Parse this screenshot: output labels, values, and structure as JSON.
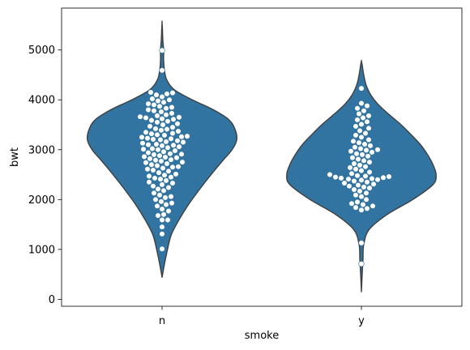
{
  "chart_data": {
    "type": "violin",
    "overlay": "swarm",
    "xlabel": "smoke",
    "ylabel": "bwt",
    "categories": [
      "n",
      "y"
    ],
    "ylim": [
      -140,
      5840
    ],
    "yticks": [
      0,
      1000,
      2000,
      3000,
      4000,
      5000
    ],
    "colors": {
      "violin_fill": "#3274a1",
      "violin_edge": "#3f3f3f",
      "point_fill": "#ffffff",
      "point_edge": "#3274a1",
      "axes": "#000000"
    },
    "violins": [
      {
        "category": "n",
        "range": [
          440,
          5560
        ],
        "density": [
          [
            440,
            0.0
          ],
          [
            700,
            0.03
          ],
          [
            1000,
            0.07
          ],
          [
            1300,
            0.12
          ],
          [
            1600,
            0.22
          ],
          [
            1900,
            0.34
          ],
          [
            2200,
            0.48
          ],
          [
            2500,
            0.63
          ],
          [
            2800,
            0.79
          ],
          [
            3000,
            0.9
          ],
          [
            3200,
            0.96
          ],
          [
            3400,
            0.94
          ],
          [
            3600,
            0.86
          ],
          [
            3800,
            0.66
          ],
          [
            4000,
            0.39
          ],
          [
            4200,
            0.16
          ],
          [
            4400,
            0.06
          ],
          [
            4600,
            0.03
          ],
          [
            4800,
            0.02
          ],
          [
            5000,
            0.02
          ],
          [
            5200,
            0.01
          ],
          [
            5400,
            0.005
          ],
          [
            5560,
            0.0
          ]
        ]
      },
      {
        "category": "y",
        "range": [
          150,
          4780
        ],
        "density": [
          [
            150,
            0.0
          ],
          [
            500,
            0.01
          ],
          [
            800,
            0.02
          ],
          [
            1100,
            0.03
          ],
          [
            1400,
            0.1
          ],
          [
            1700,
            0.33
          ],
          [
            2000,
            0.66
          ],
          [
            2300,
            0.92
          ],
          [
            2500,
            0.96
          ],
          [
            2700,
            0.92
          ],
          [
            2900,
            0.85
          ],
          [
            3100,
            0.76
          ],
          [
            3300,
            0.64
          ],
          [
            3500,
            0.51
          ],
          [
            3700,
            0.36
          ],
          [
            3900,
            0.22
          ],
          [
            4100,
            0.12
          ],
          [
            4300,
            0.06
          ],
          [
            4500,
            0.03
          ],
          [
            4700,
            0.01
          ],
          [
            4780,
            0.0
          ]
        ]
      }
    ],
    "points": {
      "n": [
        1010,
        1310,
        1450,
        1590,
        1590,
        1680,
        1700,
        1770,
        1810,
        1870,
        1900,
        1930,
        1960,
        2000,
        2040,
        2060,
        2090,
        2130,
        2180,
        2210,
        2240,
        2270,
        2300,
        2330,
        2350,
        2380,
        2410,
        2430,
        2450,
        2470,
        2490,
        2510,
        2540,
        2570,
        2590,
        2610,
        2630,
        2650,
        2660,
        2680,
        2700,
        2720,
        2740,
        2750,
        2770,
        2790,
        2800,
        2820,
        2840,
        2850,
        2860,
        2880,
        2900,
        2910,
        2920,
        2940,
        2960,
        2980,
        3000,
        3010,
        3020,
        3040,
        3060,
        3080,
        3090,
        3100,
        3110,
        3130,
        3150,
        3160,
        3180,
        3200,
        3210,
        3220,
        3230,
        3250,
        3260,
        3270,
        3290,
        3300,
        3320,
        3330,
        3350,
        3370,
        3390,
        3410,
        3420,
        3450,
        3470,
        3500,
        3520,
        3550,
        3570,
        3590,
        3610,
        3620,
        3640,
        3650,
        3660,
        3680,
        3700,
        3730,
        3760,
        3780,
        3800,
        3830,
        3850,
        3870,
        3900,
        3920,
        3950,
        3980,
        4000,
        4020,
        4060,
        4100,
        4120,
        4140,
        4150,
        4590,
        4990
      ],
      "y": [
        710,
        1130,
        1790,
        1820,
        1840,
        1870,
        1900,
        1920,
        1950,
        2000,
        2060,
        2090,
        2130,
        2170,
        2200,
        2230,
        2250,
        2270,
        2290,
        2310,
        2330,
        2350,
        2370,
        2390,
        2400,
        2410,
        2420,
        2430,
        2440,
        2450,
        2460,
        2470,
        2480,
        2500,
        2520,
        2550,
        2580,
        2610,
        2640,
        2660,
        2690,
        2720,
        2750,
        2780,
        2810,
        2840,
        2870,
        2900,
        2920,
        2950,
        2970,
        2990,
        3000,
        3020,
        3050,
        3080,
        3110,
        3140,
        3170,
        3200,
        3250,
        3290,
        3330,
        3380,
        3430,
        3470,
        3510,
        3560,
        3600,
        3640,
        3680,
        3720,
        3780,
        3830,
        3880,
        3930,
        4230
      ]
    }
  }
}
